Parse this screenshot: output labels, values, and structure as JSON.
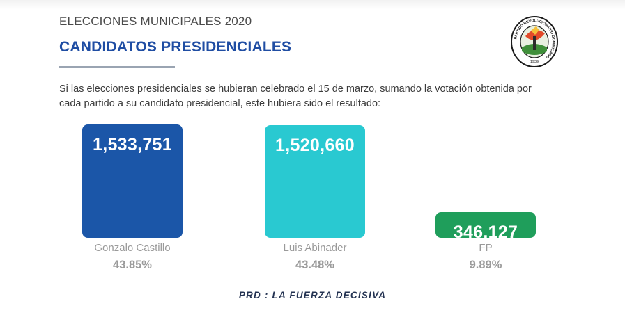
{
  "header": {
    "label": "ELECCIONES MUNICIPALES 2020",
    "title": "CANDIDATOS PRESIDENCIALES"
  },
  "logo": {
    "icon": "prd-seal-icon",
    "ring_text": "PARTIDO REVOLUCIONARIO DOMINICANO",
    "year": "1939"
  },
  "intro_lines": [
    "Si las elecciones presidenciales se hubieran celebrado el 15 de marzo, sumando la votación obtenida por",
    "cada partido a su candidato presidencial, este hubiera sido el resultado:"
  ],
  "chart_data": {
    "type": "bar",
    "categories": [
      "Gonzalo Castillo",
      "Luis Abinader",
      "FP"
    ],
    "values": [
      1533751,
      1520660,
      346127
    ],
    "value_labels": [
      "1,533,751",
      "1,520,660",
      "346,127"
    ],
    "percent_labels": [
      "43.85%",
      "43.48%",
      "9.89%"
    ],
    "colors": [
      "#1b56a8",
      "#29c9d1",
      "#1f9e5b"
    ],
    "grid": false,
    "legend": "none"
  },
  "footer": {
    "slogan": "PRD : LA FUERZA DECISIVA"
  }
}
